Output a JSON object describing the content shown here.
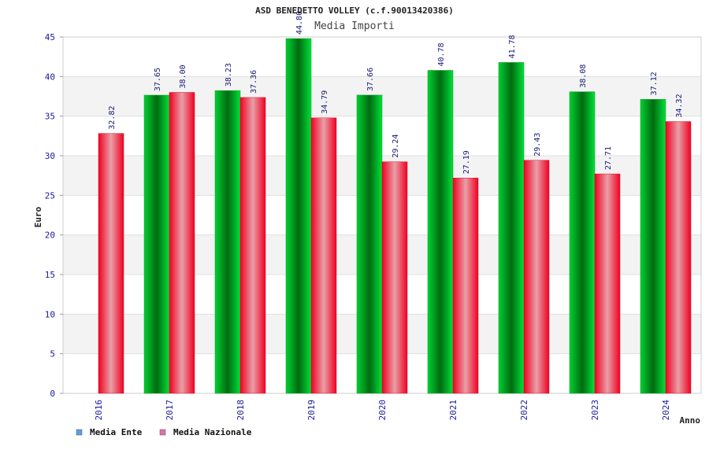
{
  "chart_data": {
    "type": "bar",
    "title": "ASD BENEDETTO VOLLEY (c.f.90013420386)",
    "subtitle": "Media Importi",
    "xlabel": "Anno",
    "ylabel": "Euro",
    "ylim": [
      0,
      45
    ],
    "yticks": [
      0,
      5,
      10,
      15,
      20,
      25,
      30,
      35,
      40,
      45
    ],
    "grid": true,
    "legend_position": "bottom-left",
    "categories": [
      "2016",
      "2017",
      "2018",
      "2019",
      "2020",
      "2021",
      "2022",
      "2023",
      "2024"
    ],
    "series": [
      {
        "name": "Media Ente",
        "values": [
          null,
          37.65,
          38.23,
          44.8,
          37.66,
          40.78,
          41.78,
          38.08,
          37.12
        ],
        "labels": [
          "",
          "37.65",
          "38.23",
          "44.80",
          "37.66",
          "40.78",
          "41.78",
          "38.08",
          "37.12"
        ],
        "color": "#00b020",
        "legend_color": "#5aa0e6"
      },
      {
        "name": "Media Nazionale",
        "values": [
          32.82,
          38.0,
          37.36,
          34.79,
          29.24,
          27.19,
          29.43,
          27.71,
          34.32
        ],
        "labels": [
          "32.82",
          "38.00",
          "37.36",
          "34.79",
          "29.24",
          "27.19",
          "29.43",
          "27.71",
          "34.32"
        ],
        "color": "#e8102a",
        "legend_color": "#e070a8"
      }
    ]
  }
}
